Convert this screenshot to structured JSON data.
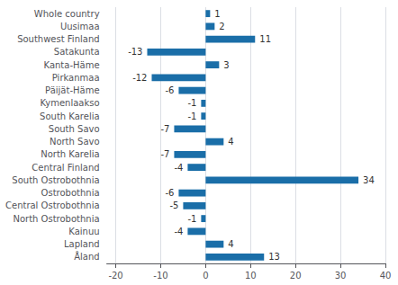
{
  "chart_data": {
    "type": "bar",
    "orientation": "horizontal",
    "categories": [
      "Whole country",
      "Uusimaa",
      "Southwest Finland",
      "Satakunta",
      "Kanta-Häme",
      "Pirkanmaa",
      "Päijät-Häme",
      "Kymenlaakso",
      "South Karelia",
      "South Savo",
      "North Savo",
      "North Karelia",
      "Central Finland",
      "South Ostrobothnia",
      "Ostrobothnia",
      "Central Ostrobothnia",
      "North Ostrobothnia",
      "Kainuu",
      "Lapland",
      "Åland"
    ],
    "values": [
      1,
      2,
      11,
      -13,
      3,
      -12,
      -6,
      -1,
      -1,
      -7,
      4,
      -7,
      -4,
      34,
      -6,
      -5,
      -1,
      -4,
      4,
      13
    ],
    "color": "#1a6ea8",
    "xlim": [
      -22,
      40
    ],
    "xticks": [
      -20,
      -10,
      0,
      10,
      20,
      30,
      40
    ],
    "grid": true,
    "data_labels": true
  }
}
